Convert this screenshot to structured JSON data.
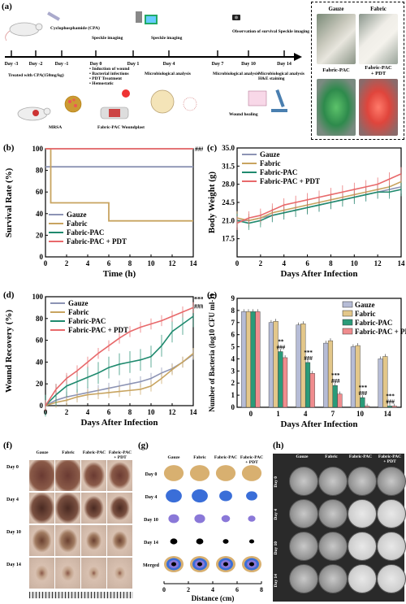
{
  "panel_labels": {
    "a": "(a)",
    "b": "(b)",
    "c": "(c)",
    "d": "(d)",
    "e": "(e)",
    "f": "(f)",
    "g": "(g)",
    "h": "(h)"
  },
  "timeline": {
    "days": [
      "Day -3",
      "Day -2",
      "Day -1",
      "Day 0",
      "Day 1",
      "Day 4",
      "Day 7",
      "Day 10",
      "Day 14"
    ],
    "top_notes": {
      "cpa": "Cyclophosphamide (CPA)",
      "speckle1": "Speckle imaging",
      "speckle2": "Speckle imaging",
      "observation": "Observation of survival Speckle imaging"
    },
    "bottom_notes": {
      "treated": "Treated with CPA(150mg/kg)",
      "induction": "• Induction of wound\n• Bacterial infections\n• PDT Treatment\n• Hemostatic",
      "micro1": "Microbiological analysis",
      "micro2": "Microbiological analysis",
      "micro3": "Microbiological analysis H&E staining",
      "woundplast": "Fabric-PAC Woundplast",
      "healing": "Wound healing",
      "mrsa": "MRSA"
    },
    "photos": {
      "gauze": "Gauze",
      "fabric": "Fabric",
      "pac": "Fabric-PAC",
      "pdt": "Fabric-PAC + PDT"
    }
  },
  "colors": {
    "gauze": "#8c93b4",
    "fabric": "#c8a460",
    "pac": "#1f8a6e",
    "pdt": "#e8696b",
    "bar_gauze": "#b6bcd6",
    "bar_fabric": "#e3c78a",
    "bar_pac": "#2a9b79",
    "bar_pdt": "#f08c8e"
  },
  "chart_data": [
    {
      "id": "b",
      "type": "line",
      "ylabel": "Survival Rate (%)",
      "xlabel": "Time (h)",
      "xlim": [
        0,
        14
      ],
      "ylim": [
        0,
        100
      ],
      "xticks": [
        0,
        2,
        4,
        6,
        8,
        10,
        12,
        14
      ],
      "yticks": [
        0,
        20,
        40,
        60,
        80,
        100
      ],
      "series": [
        {
          "name": "Gauze",
          "x": [
            0,
            14
          ],
          "y": [
            83.3,
            83.3
          ]
        },
        {
          "name": "Fabric",
          "x": [
            0,
            0.5,
            0.5,
            6,
            6,
            14
          ],
          "y": [
            100,
            100,
            50,
            50,
            33.3,
            33.3
          ]
        },
        {
          "name": "Fabric-PAC",
          "x": [
            0,
            14
          ],
          "y": [
            100,
            100
          ]
        },
        {
          "name": "Fabric-PAC + PDT",
          "x": [
            0,
            14
          ],
          "y": [
            100,
            100
          ]
        }
      ],
      "annotation": "###"
    },
    {
      "id": "c",
      "type": "line",
      "ylabel": "Body Weight (g)",
      "xlabel": "Days After Infection",
      "xlim": [
        0,
        14
      ],
      "ylim": [
        14,
        35
      ],
      "xticks": [
        0,
        2,
        4,
        6,
        8,
        10,
        12,
        14
      ],
      "yticks": [
        17.5,
        21.0,
        24.5,
        28.0,
        31.5,
        35.0
      ],
      "series": [
        {
          "name": "Gauze",
          "x": [
            0,
            1,
            2,
            3,
            4,
            5,
            6,
            7,
            8,
            9,
            10,
            11,
            12,
            13,
            14
          ],
          "y": [
            21,
            21,
            21.5,
            22,
            22.5,
            23,
            23.5,
            24,
            24.5,
            25,
            25.5,
            26,
            26.5,
            27,
            27.5
          ]
        },
        {
          "name": "Fabric",
          "x": [
            0,
            1,
            2,
            3,
            4,
            5,
            6,
            7,
            8,
            9,
            10,
            11,
            12,
            13,
            14
          ],
          "y": [
            21.5,
            21,
            21.5,
            22.5,
            23,
            23.5,
            24,
            24.5,
            25,
            25.5,
            26,
            26.5,
            27,
            27.5,
            28.5
          ]
        },
        {
          "name": "Fabric-PAC",
          "x": [
            0,
            1,
            2,
            3,
            4,
            5,
            6,
            7,
            8,
            9,
            10,
            11,
            12,
            13,
            14
          ],
          "y": [
            21,
            20.5,
            21,
            22,
            22.5,
            23,
            23.5,
            24,
            24.5,
            25,
            25.5,
            26,
            26.5,
            26.5,
            27
          ]
        },
        {
          "name": "Fabric-PAC + PDT",
          "x": [
            0,
            1,
            2,
            3,
            4,
            5,
            6,
            7,
            8,
            9,
            10,
            11,
            12,
            13,
            14
          ],
          "y": [
            20.5,
            21.5,
            22,
            23,
            24,
            24.5,
            25,
            25.5,
            26,
            26.5,
            27,
            27.5,
            28,
            29,
            30
          ]
        }
      ]
    },
    {
      "id": "d",
      "type": "line",
      "ylabel": "Wound Recovery (%)",
      "xlabel": "Days After Infection",
      "xlim": [
        0,
        14
      ],
      "ylim": [
        0,
        100
      ],
      "xticks": [
        0,
        2,
        4,
        6,
        8,
        10,
        12,
        14
      ],
      "yticks": [
        0,
        20,
        40,
        60,
        80,
        100
      ],
      "series": [
        {
          "name": "Gauze",
          "x": [
            0,
            1,
            2,
            3,
            4,
            5,
            6,
            7,
            8,
            9,
            10,
            11,
            12,
            13,
            14
          ],
          "y": [
            0,
            5,
            8,
            10,
            12,
            14,
            16,
            18,
            20,
            22,
            25,
            30,
            34,
            40,
            47
          ]
        },
        {
          "name": "Fabric",
          "x": [
            0,
            1,
            2,
            3,
            4,
            5,
            6,
            7,
            8,
            9,
            10,
            11,
            12,
            13,
            14
          ],
          "y": [
            0,
            3,
            5,
            8,
            10,
            11,
            12,
            13,
            14,
            15,
            18,
            25,
            33,
            40,
            48
          ]
        },
        {
          "name": "Fabric-PAC",
          "x": [
            0,
            1,
            2,
            3,
            4,
            5,
            6,
            7,
            8,
            9,
            10,
            11,
            12,
            13,
            14
          ],
          "y": [
            0,
            10,
            18,
            22,
            26,
            30,
            35,
            38,
            40,
            42,
            45,
            55,
            68,
            75,
            82
          ]
        },
        {
          "name": "Fabric-PAC + PDT",
          "x": [
            0,
            1,
            2,
            3,
            4,
            5,
            6,
            7,
            8,
            9,
            10,
            11,
            12,
            13,
            14
          ],
          "y": [
            0,
            15,
            25,
            32,
            40,
            48,
            55,
            62,
            68,
            72,
            75,
            78,
            82,
            86,
            90
          ]
        }
      ],
      "annotations": [
        "***",
        "###"
      ]
    },
    {
      "id": "e",
      "type": "bar",
      "ylabel": "Number of Bacteria (log10 CFU ml-1)",
      "xlabel": "Days After Infection",
      "categories": [
        "0",
        "1",
        "4",
        "7",
        "10",
        "14"
      ],
      "ylim": [
        0,
        9
      ],
      "yticks": [
        0,
        1,
        2,
        3,
        4,
        5,
        6,
        7,
        8,
        9
      ],
      "series": [
        {
          "name": "Gauze",
          "values": [
            7.9,
            7.0,
            6.8,
            5.3,
            5.0,
            4.0
          ]
        },
        {
          "name": "Fabric",
          "values": [
            7.9,
            7.1,
            6.9,
            5.5,
            5.1,
            4.2
          ]
        },
        {
          "name": "Fabric-PAC",
          "values": [
            7.9,
            4.6,
            3.7,
            1.8,
            0.8,
            0.1
          ]
        },
        {
          "name": "Fabric-PAC + PDT",
          "values": [
            7.9,
            4.1,
            2.8,
            1.1,
            0.1,
            0.1
          ]
        }
      ],
      "annotations": [
        {
          "day": "1",
          "text": "**"
        },
        {
          "day": "1",
          "text": "###"
        },
        {
          "day": "4",
          "text": "***"
        },
        {
          "day": "4",
          "text": "###"
        },
        {
          "day": "7",
          "text": "***"
        },
        {
          "day": "7",
          "text": "###"
        },
        {
          "day": "10",
          "text": "***"
        },
        {
          "day": "10",
          "text": "###"
        },
        {
          "day": "14",
          "text": "***"
        },
        {
          "day": "14",
          "text": "###"
        }
      ]
    }
  ],
  "photo_grids": {
    "cols": [
      "Gauze",
      "Fabric",
      "Fabric-PAC",
      "Fabric-PAC\n+ PDT"
    ],
    "rows": [
      "Day 0",
      "Day 4",
      "Day 10",
      "Day 14"
    ],
    "g_rows": [
      "Day 0",
      "Day 4",
      "Day 10",
      "Day 14",
      "Merged"
    ],
    "g_xlabel": "Distance (cm)",
    "g_xticks": [
      "0",
      "2",
      "4",
      "6",
      "8"
    ]
  }
}
